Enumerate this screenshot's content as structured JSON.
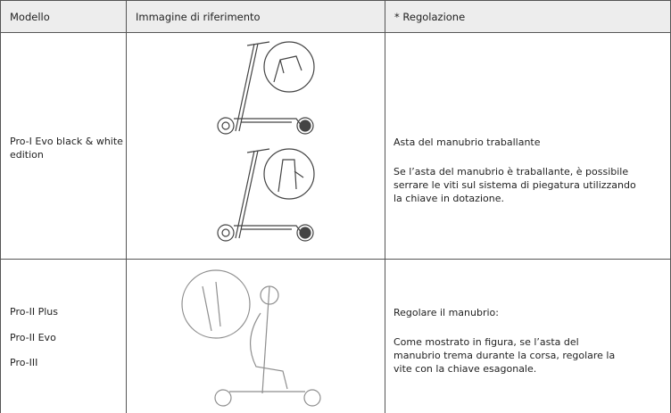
{
  "table": {
    "headers": [
      "Modello",
      "Immagine di riferimento",
      "* Regolazione"
    ],
    "rows": [
      {
        "models": [
          "Pro-I Evo black & white edition"
        ],
        "adjustment": {
          "title": "Asta del manubrio traballante",
          "text": "Se l’asta del manubrio è traballante, è possibile serrare le viti sul sistema di piegatura utilizzando la chiave in dotazione."
        }
      },
      {
        "models": [
          "Pro-II Plus",
          "Pro-II Evo",
          "Pro-III"
        ],
        "adjustment": {
          "title": "Regolare il manubrio:",
          "text": "Come mostrato in figura, se l’asta del manubrio trema durante la corsa, regolare la vite con la chiave esagonale."
        }
      }
    ]
  }
}
